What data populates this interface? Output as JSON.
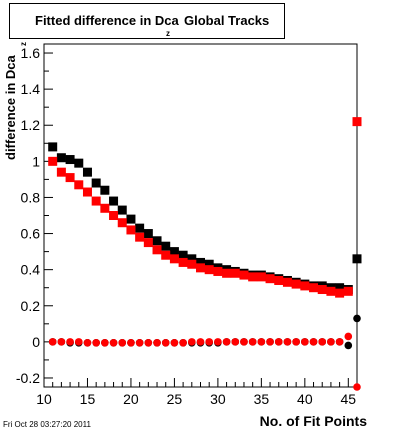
{
  "title": {
    "part1": "Fitted difference in Dca",
    "subscript": "z",
    "part2": "Global Tracks"
  },
  "axes": {
    "ylabel": "difference in Dca",
    "ylabel_sub": "z",
    "xlabel": "No. of Fit Points"
  },
  "timestamp": "Fri Oct 28 03:27:20 2011",
  "chart_data": {
    "type": "scatter",
    "xlim": [
      10,
      46
    ],
    "ylim": [
      -0.25,
      1.65
    ],
    "xticks": [
      10,
      15,
      20,
      25,
      30,
      35,
      40,
      45
    ],
    "xtick_labels": [
      "10",
      "15",
      "20",
      "25",
      "30",
      "35",
      "40",
      "45"
    ],
    "yticks": [
      -0.2,
      0,
      0.2,
      0.4,
      0.6,
      0.8,
      1,
      1.2,
      1.4,
      1.6
    ],
    "ytick_labels": [
      "-0.2",
      "0",
      "0.2",
      "0.4",
      "0.6",
      "0.8",
      "1",
      "1.2",
      "1.4",
      "1.6"
    ],
    "series": [
      {
        "marker": "square",
        "color": "#000000",
        "points": [
          [
            11,
            1.08
          ],
          [
            12,
            1.02
          ],
          [
            13,
            1.01
          ],
          [
            14,
            0.99
          ],
          [
            15,
            0.94
          ],
          [
            16,
            0.88
          ],
          [
            17,
            0.84
          ],
          [
            18,
            0.78
          ],
          [
            19,
            0.73
          ],
          [
            20,
            0.68
          ],
          [
            21,
            0.63
          ],
          [
            22,
            0.6
          ],
          [
            23,
            0.56
          ],
          [
            24,
            0.53
          ],
          [
            25,
            0.5
          ],
          [
            26,
            0.48
          ],
          [
            27,
            0.46
          ],
          [
            28,
            0.44
          ],
          [
            29,
            0.43
          ],
          [
            30,
            0.41
          ],
          [
            31,
            0.4
          ],
          [
            32,
            0.39
          ],
          [
            33,
            0.38
          ],
          [
            34,
            0.37
          ],
          [
            35,
            0.37
          ],
          [
            36,
            0.36
          ],
          [
            37,
            0.35
          ],
          [
            38,
            0.34
          ],
          [
            39,
            0.33
          ],
          [
            40,
            0.32
          ],
          [
            41,
            0.31
          ],
          [
            42,
            0.31
          ],
          [
            43,
            0.3
          ],
          [
            44,
            0.3
          ],
          [
            45,
            0.29
          ],
          [
            46,
            0.46
          ]
        ]
      },
      {
        "marker": "square",
        "color": "#ff0000",
        "points": [
          [
            11,
            1.0
          ],
          [
            12,
            0.94
          ],
          [
            13,
            0.91
          ],
          [
            14,
            0.87
          ],
          [
            15,
            0.83
          ],
          [
            16,
            0.78
          ],
          [
            17,
            0.74
          ],
          [
            18,
            0.7
          ],
          [
            19,
            0.66
          ],
          [
            20,
            0.62
          ],
          [
            21,
            0.58
          ],
          [
            22,
            0.55
          ],
          [
            23,
            0.51
          ],
          [
            24,
            0.48
          ],
          [
            25,
            0.46
          ],
          [
            26,
            0.44
          ],
          [
            27,
            0.43
          ],
          [
            28,
            0.41
          ],
          [
            29,
            0.4
          ],
          [
            30,
            0.39
          ],
          [
            31,
            0.38
          ],
          [
            32,
            0.38
          ],
          [
            33,
            0.37
          ],
          [
            34,
            0.36
          ],
          [
            35,
            0.36
          ],
          [
            36,
            0.35
          ],
          [
            37,
            0.34
          ],
          [
            38,
            0.33
          ],
          [
            39,
            0.32
          ],
          [
            40,
            0.31
          ],
          [
            41,
            0.3
          ],
          [
            42,
            0.29
          ],
          [
            43,
            0.28
          ],
          [
            44,
            0.27
          ],
          [
            45,
            0.28
          ],
          [
            46,
            1.22
          ]
        ]
      },
      {
        "marker": "circle",
        "color": "#000000",
        "points": [
          [
            11,
            0.0
          ],
          [
            12,
            0.0
          ],
          [
            13,
            -0.005
          ],
          [
            14,
            -0.005
          ],
          [
            15,
            -0.005
          ],
          [
            16,
            -0.005
          ],
          [
            17,
            -0.005
          ],
          [
            18,
            -0.005
          ],
          [
            19,
            -0.005
          ],
          [
            20,
            -0.005
          ],
          [
            21,
            -0.005
          ],
          [
            22,
            -0.005
          ],
          [
            23,
            -0.005
          ],
          [
            24,
            -0.005
          ],
          [
            25,
            -0.005
          ],
          [
            26,
            -0.005
          ],
          [
            27,
            -0.005
          ],
          [
            28,
            -0.005
          ],
          [
            29,
            -0.005
          ],
          [
            30,
            -0.005
          ],
          [
            31,
            0.0
          ],
          [
            32,
            0.0
          ],
          [
            33,
            0.0
          ],
          [
            34,
            0.0
          ],
          [
            35,
            0.0
          ],
          [
            36,
            0.0
          ],
          [
            37,
            0.0
          ],
          [
            38,
            0.0
          ],
          [
            39,
            0.0
          ],
          [
            40,
            0.0
          ],
          [
            41,
            0.0
          ],
          [
            42,
            0.0
          ],
          [
            43,
            0.0
          ],
          [
            44,
            0.0
          ],
          [
            45,
            -0.02
          ],
          [
            46,
            0.13
          ]
        ]
      },
      {
        "marker": "circle",
        "color": "#ff0000",
        "points": [
          [
            11,
            0.0
          ],
          [
            12,
            0.0
          ],
          [
            13,
            0.0
          ],
          [
            14,
            0.0
          ],
          [
            15,
            -0.005
          ],
          [
            16,
            -0.005
          ],
          [
            17,
            -0.005
          ],
          [
            18,
            -0.005
          ],
          [
            19,
            -0.005
          ],
          [
            20,
            -0.005
          ],
          [
            21,
            -0.005
          ],
          [
            22,
            -0.005
          ],
          [
            23,
            -0.005
          ],
          [
            24,
            -0.005
          ],
          [
            25,
            -0.005
          ],
          [
            26,
            -0.005
          ],
          [
            27,
            0.0
          ],
          [
            28,
            0.0
          ],
          [
            29,
            0.0
          ],
          [
            30,
            0.0
          ],
          [
            31,
            0.0
          ],
          [
            32,
            0.0
          ],
          [
            33,
            0.0
          ],
          [
            34,
            0.0
          ],
          [
            35,
            0.0
          ],
          [
            36,
            0.0
          ],
          [
            37,
            0.0
          ],
          [
            38,
            0.0
          ],
          [
            39,
            0.0
          ],
          [
            40,
            0.0
          ],
          [
            41,
            0.0
          ],
          [
            42,
            0.0
          ],
          [
            43,
            0.0
          ],
          [
            44,
            0.0
          ],
          [
            45,
            0.03
          ],
          [
            46,
            -0.25
          ]
        ]
      }
    ]
  }
}
